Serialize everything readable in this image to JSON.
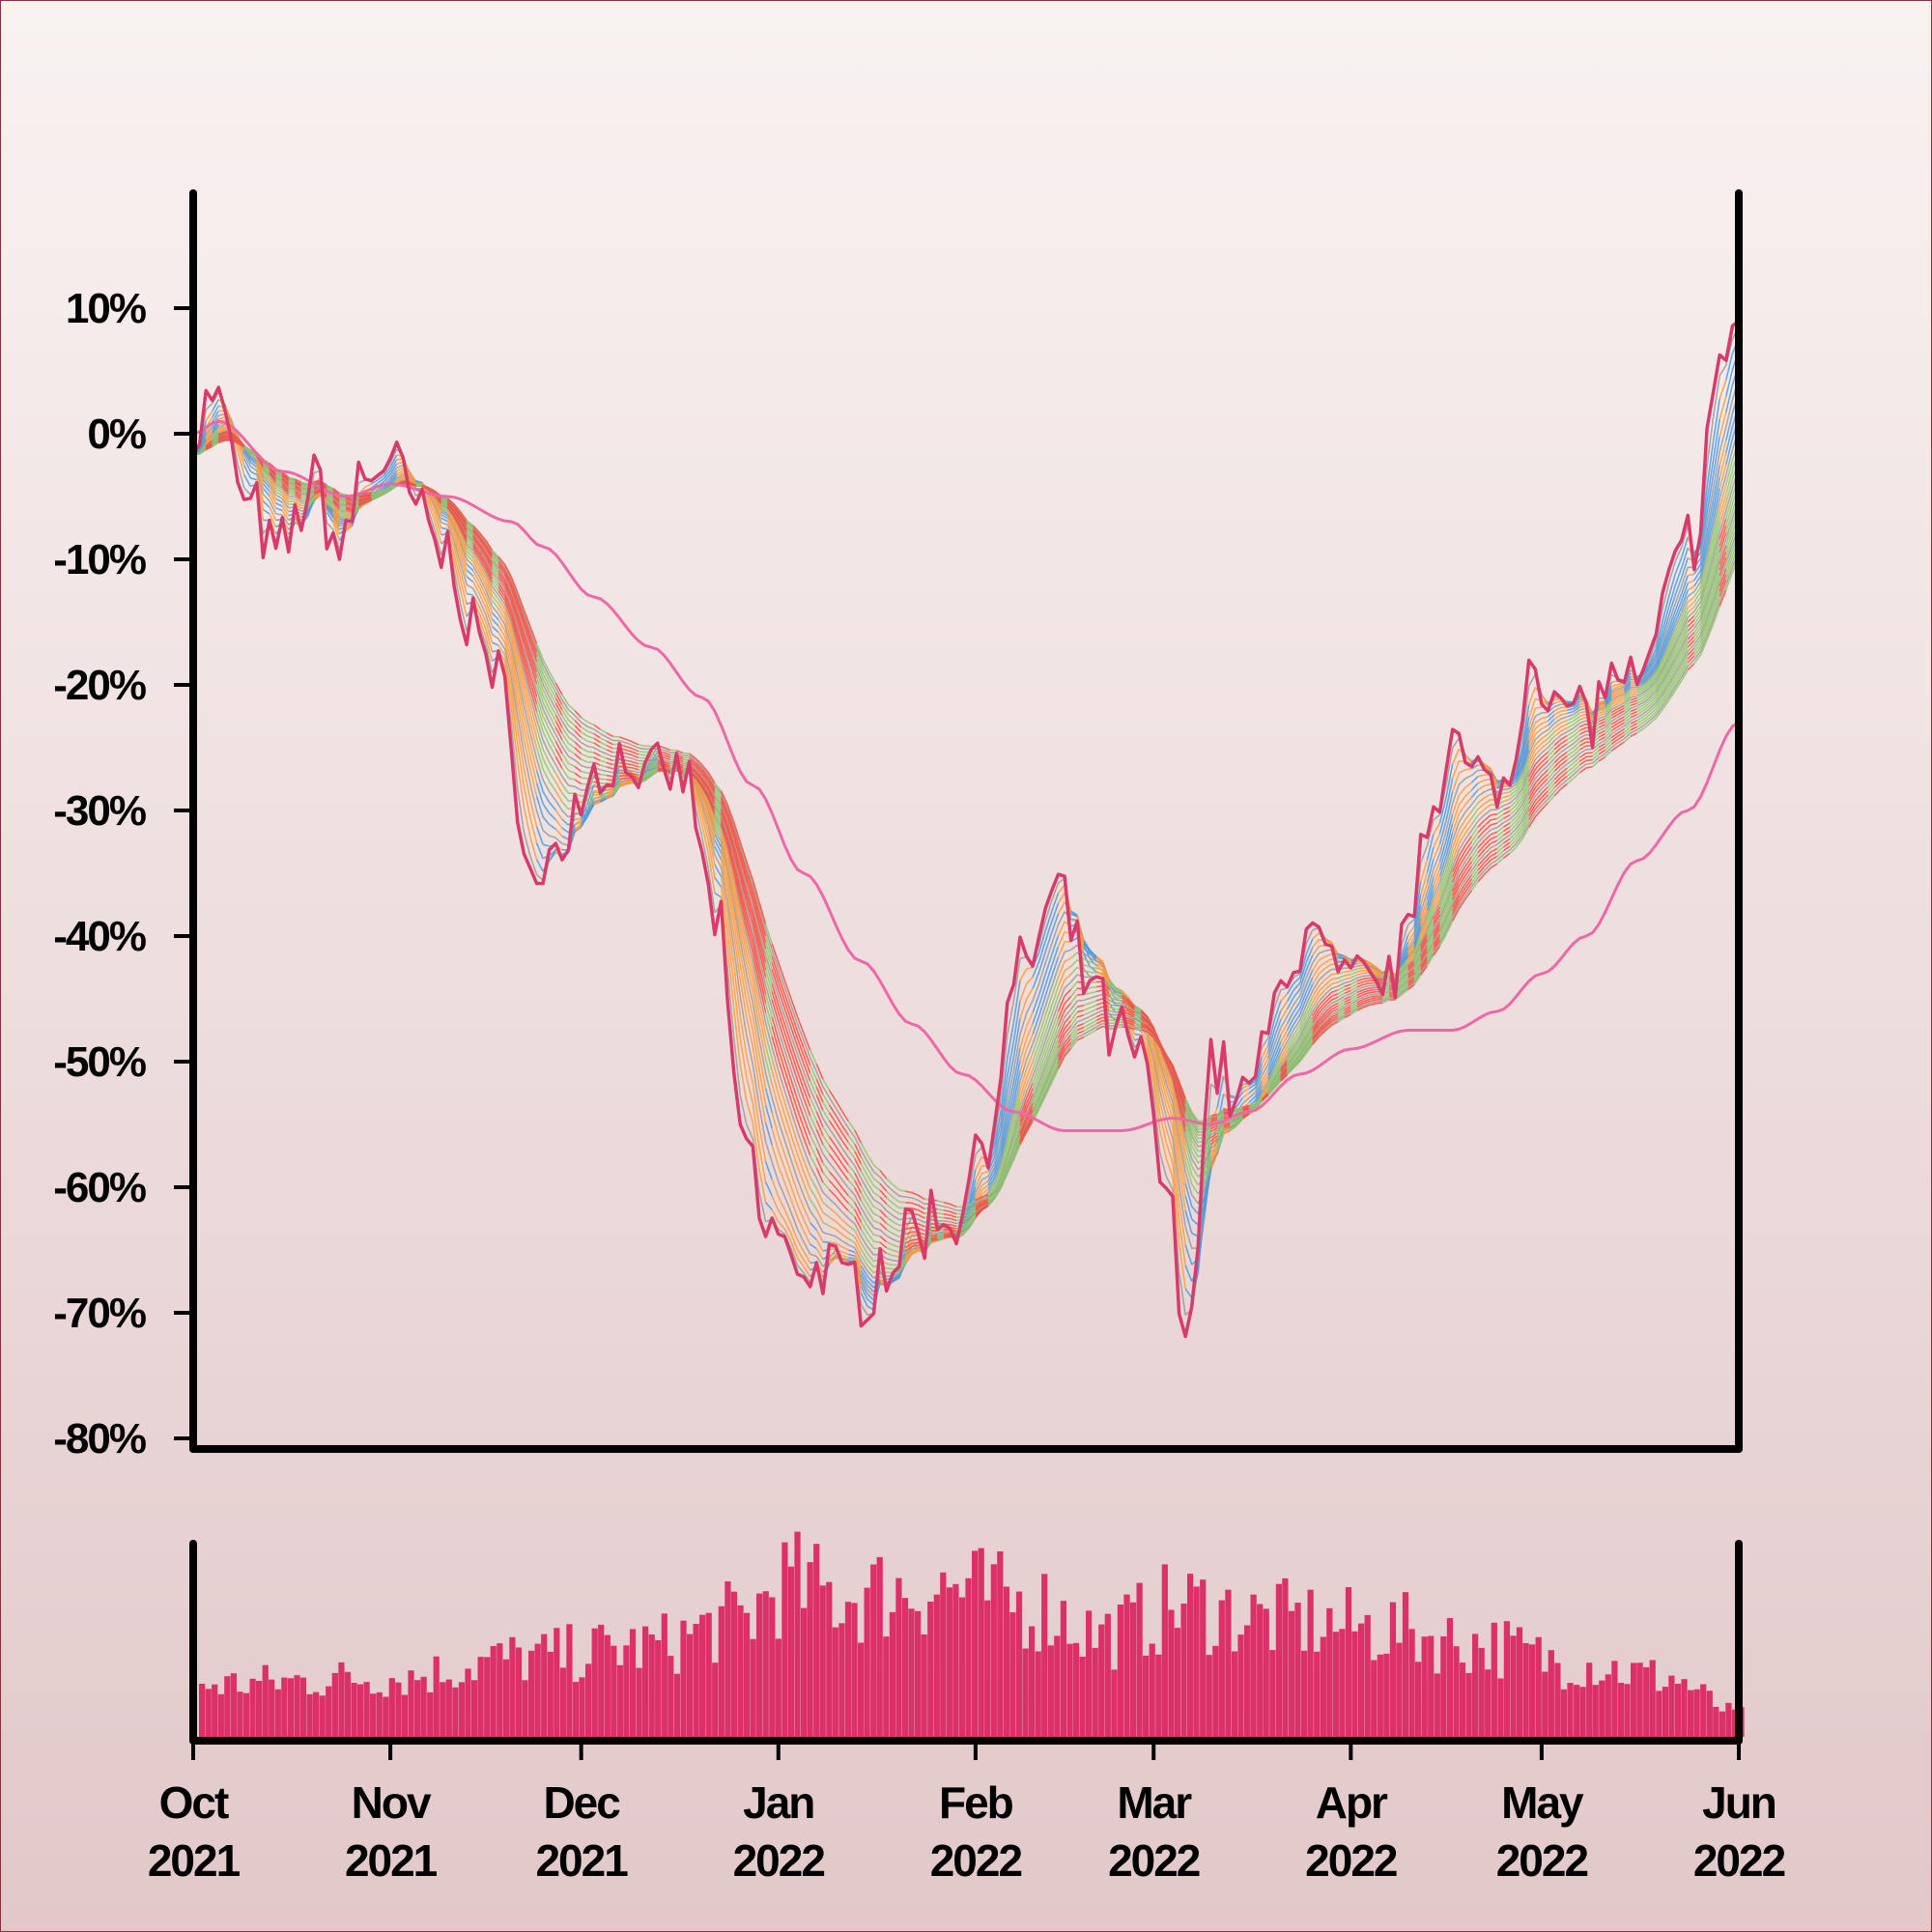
{
  "chart_data": [
    {
      "type": "line",
      "panel": "price",
      "title": "",
      "xlabel": "",
      "ylabel": "",
      "x_range": [
        "2021-10-01",
        "2022-06-01"
      ],
      "ylim": [
        -80,
        15
      ],
      "y_ticks": [
        10,
        0,
        -10,
        -20,
        -30,
        -40,
        -50,
        -60,
        -70,
        -80
      ],
      "y_tick_labels": [
        "10%",
        "0%",
        "-10%",
        "-20%",
        "-30%",
        "-40%",
        "-50%",
        "-60%",
        "-70%",
        "-80%"
      ],
      "grid": false,
      "colors": {
        "price_line": "#d83a6c",
        "moving_average": "#ee68a8",
        "ribbon": [
          "#4a9be0",
          "#8fc86a",
          "#ff4a3a",
          "#ff9b3a",
          "#9a9a9a"
        ]
      },
      "price_anchors": [
        [
          "2021-10-01",
          0
        ],
        [
          "2021-10-04",
          3
        ],
        [
          "2021-10-10",
          -6
        ],
        [
          "2021-10-14",
          -10
        ],
        [
          "2021-10-20",
          -4
        ],
        [
          "2021-10-24",
          -9
        ],
        [
          "2021-10-28",
          -3
        ],
        [
          "2021-11-01",
          -2
        ],
        [
          "2021-11-05",
          -6
        ],
        [
          "2021-11-10",
          -10
        ],
        [
          "2021-11-14",
          -15
        ],
        [
          "2021-11-18",
          -20
        ],
        [
          "2021-11-21",
          -28
        ],
        [
          "2021-11-24",
          -37
        ],
        [
          "2021-11-28",
          -32
        ],
        [
          "2021-12-03",
          -27
        ],
        [
          "2021-12-08",
          -26
        ],
        [
          "2021-12-13",
          -28
        ],
        [
          "2021-12-17",
          -27
        ],
        [
          "2021-12-22",
          -38
        ],
        [
          "2021-12-26",
          -55
        ],
        [
          "2021-12-30",
          -63
        ],
        [
          "2022-01-04",
          -66
        ],
        [
          "2022-01-09",
          -67
        ],
        [
          "2022-01-14",
          -68
        ],
        [
          "2022-01-18",
          -66
        ],
        [
          "2022-01-23",
          -63
        ],
        [
          "2022-01-29",
          -62
        ],
        [
          "2022-02-03",
          -55
        ],
        [
          "2022-02-08",
          -43
        ],
        [
          "2022-02-14",
          -37
        ],
        [
          "2022-02-18",
          -43
        ],
        [
          "2022-02-23",
          -48
        ],
        [
          "2022-02-27",
          -50
        ],
        [
          "2022-03-03",
          -60
        ],
        [
          "2022-03-06",
          -73
        ],
        [
          "2022-03-10",
          -50
        ],
        [
          "2022-03-15",
          -53
        ],
        [
          "2022-03-18",
          -50
        ],
        [
          "2022-03-22",
          -42
        ],
        [
          "2022-03-26",
          -40
        ],
        [
          "2022-03-31",
          -44
        ],
        [
          "2022-04-05",
          -44
        ],
        [
          "2022-04-09",
          -42
        ],
        [
          "2022-04-13",
          -30
        ],
        [
          "2022-04-17",
          -24
        ],
        [
          "2022-04-20",
          -28
        ],
        [
          "2022-04-26",
          -28
        ],
        [
          "2022-04-29",
          -17
        ],
        [
          "2022-05-04",
          -22
        ],
        [
          "2022-05-09",
          -22
        ],
        [
          "2022-05-13",
          -19
        ],
        [
          "2022-05-17",
          -21
        ],
        [
          "2022-05-21",
          -12
        ],
        [
          "2022-05-25",
          -8
        ],
        [
          "2022-05-28",
          2
        ],
        [
          "2022-05-31",
          9
        ]
      ],
      "moving_average_anchors": [
        [
          "2021-10-01",
          0
        ],
        [
          "2021-10-05",
          1
        ],
        [
          "2021-10-15",
          -3
        ],
        [
          "2021-10-25",
          -5
        ],
        [
          "2021-11-01",
          -4
        ],
        [
          "2021-11-10",
          -5
        ],
        [
          "2021-11-20",
          -7
        ],
        [
          "2021-11-25",
          -9
        ],
        [
          "2021-12-03",
          -13
        ],
        [
          "2021-12-12",
          -17
        ],
        [
          "2021-12-20",
          -21
        ],
        [
          "2021-12-28",
          -28
        ],
        [
          "2022-01-05",
          -35
        ],
        [
          "2022-01-14",
          -42
        ],
        [
          "2022-01-22",
          -47
        ],
        [
          "2022-01-30",
          -51
        ],
        [
          "2022-02-07",
          -54
        ],
        [
          "2022-02-15",
          -55.5
        ],
        [
          "2022-02-24",
          -55.5
        ],
        [
          "2022-03-04",
          -54.5
        ],
        [
          "2022-03-10",
          -55
        ],
        [
          "2022-03-16",
          -54
        ],
        [
          "2022-03-24",
          -51
        ],
        [
          "2022-04-01",
          -49
        ],
        [
          "2022-04-10",
          -47.5
        ],
        [
          "2022-04-17",
          -47.5
        ],
        [
          "2022-04-24",
          -46
        ],
        [
          "2022-05-01",
          -43
        ],
        [
          "2022-05-08",
          -40
        ],
        [
          "2022-05-16",
          -34
        ],
        [
          "2022-05-24",
          -30
        ],
        [
          "2022-06-01",
          -23
        ]
      ]
    },
    {
      "type": "bar",
      "panel": "volume",
      "title": "",
      "ylabel": "",
      "color": "#dc3068",
      "y_axis_labels": false,
      "volume_anchors": [
        [
          "2021-10-01",
          28
        ],
        [
          "2021-11-01",
          32
        ],
        [
          "2021-11-20",
          42
        ],
        [
          "2021-12-10",
          48
        ],
        [
          "2021-12-25",
          62
        ],
        [
          "2022-01-01",
          82
        ],
        [
          "2022-01-10",
          75
        ],
        [
          "2022-01-25",
          80
        ],
        [
          "2022-02-10",
          70
        ],
        [
          "2022-02-20",
          55
        ],
        [
          "2022-03-05",
          70
        ],
        [
          "2022-03-20",
          62
        ],
        [
          "2022-04-05",
          58
        ],
        [
          "2022-04-20",
          50
        ],
        [
          "2022-05-05",
          40
        ],
        [
          "2022-05-20",
          32
        ],
        [
          "2022-06-01",
          12
        ]
      ]
    }
  ],
  "x_axis": {
    "ticks": [
      "2021-10-01",
      "2021-11-01",
      "2021-12-01",
      "2022-01-01",
      "2022-02-01",
      "2022-03-01",
      "2022-04-01",
      "2022-05-01",
      "2022-06-01"
    ],
    "labels": [
      {
        "month": "Oct",
        "year": "2021"
      },
      {
        "month": "Nov",
        "year": "2021"
      },
      {
        "month": "Dec",
        "year": "2021"
      },
      {
        "month": "Jan",
        "year": "2022"
      },
      {
        "month": "Feb",
        "year": "2022"
      },
      {
        "month": "Mar",
        "year": "2022"
      },
      {
        "month": "Apr",
        "year": "2022"
      },
      {
        "month": "May",
        "year": "2022"
      },
      {
        "month": "Jun",
        "year": "2022"
      }
    ]
  }
}
